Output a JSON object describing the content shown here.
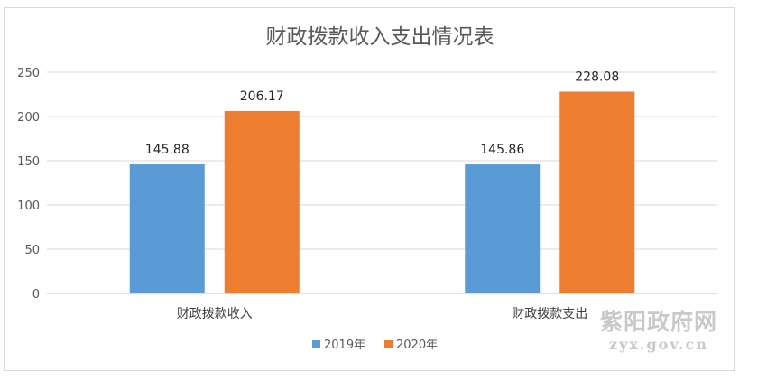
{
  "chart_data": {
    "type": "bar",
    "title": "财政拨款收入支出情况表",
    "categories": [
      "财政拨款收入",
      "财政拨款支出"
    ],
    "series": [
      {
        "name": "2019年",
        "values": [
          145.88,
          145.86
        ],
        "labels": [
          "145.88",
          "145.86"
        ],
        "color": "#5b9bd5"
      },
      {
        "name": "2020年",
        "values": [
          206.17,
          228.08
        ],
        "labels": [
          "206.17",
          "228.08"
        ],
        "color": "#ed7d31"
      }
    ],
    "ylim": [
      0,
      250
    ],
    "yticks": [
      "0",
      "50",
      "100",
      "150",
      "200",
      "250"
    ],
    "grid": true,
    "legend": "bottom"
  },
  "watermark": {
    "main": "紫阳政府网",
    "sub": "zyx.gov.cn"
  }
}
